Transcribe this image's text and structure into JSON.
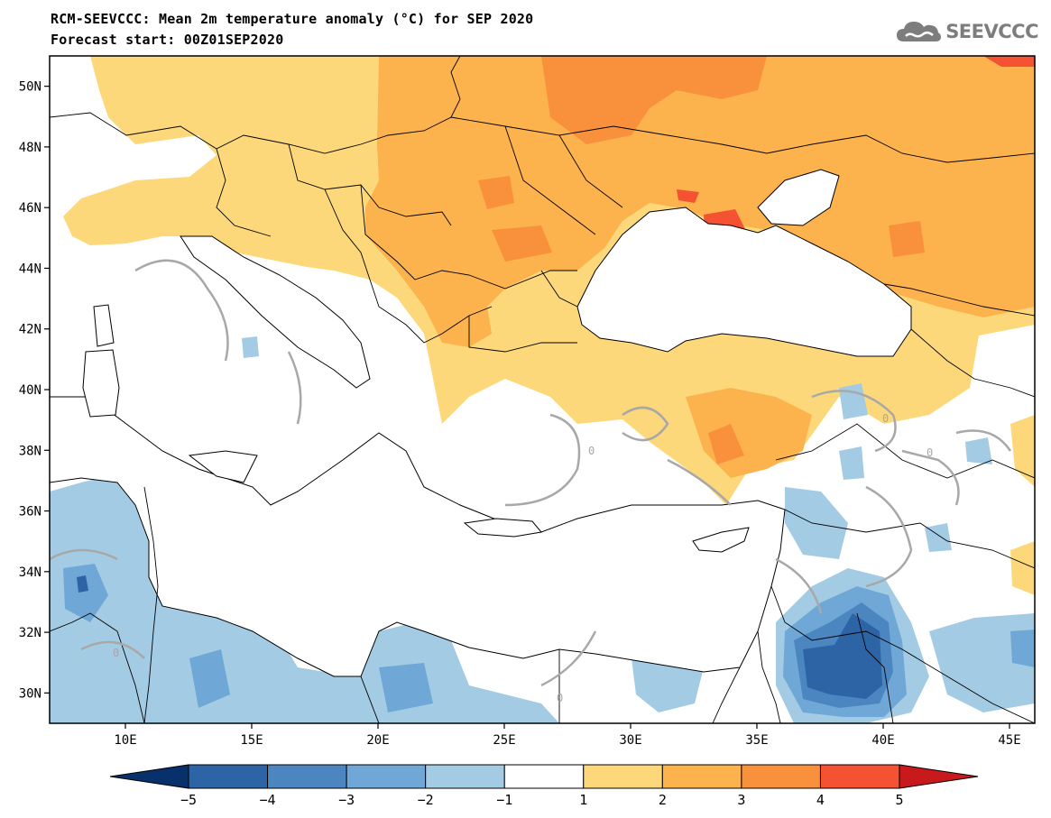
{
  "title": {
    "line1": "RCM-SEEVCCC: Mean 2m temperature anomaly (°C) for SEP 2020",
    "line2": "Forecast start: 00Z01SEP2020"
  },
  "logo": {
    "text": "SEEVCCC",
    "icon": "cloud-icon",
    "color": "#7d7d7d"
  },
  "map": {
    "variable": "2m temperature anomaly",
    "units": "°C",
    "lon_range": [
      7,
      46
    ],
    "lat_range": [
      29,
      51
    ],
    "lat_ticks": [
      {
        "value": 30,
        "label": "30N"
      },
      {
        "value": 32,
        "label": "32N"
      },
      {
        "value": 34,
        "label": "34N"
      },
      {
        "value": 36,
        "label": "36N"
      },
      {
        "value": 38,
        "label": "38N"
      },
      {
        "value": 40,
        "label": "40N"
      },
      {
        "value": 42,
        "label": "42N"
      },
      {
        "value": 44,
        "label": "44N"
      },
      {
        "value": 46,
        "label": "46N"
      },
      {
        "value": 48,
        "label": "48N"
      },
      {
        "value": 50,
        "label": "50N"
      }
    ],
    "lon_ticks": [
      {
        "value": 10,
        "label": "10E"
      },
      {
        "value": 15,
        "label": "15E"
      },
      {
        "value": 20,
        "label": "20E"
      },
      {
        "value": 25,
        "label": "25E"
      },
      {
        "value": 30,
        "label": "30E"
      },
      {
        "value": 35,
        "label": "35E"
      },
      {
        "value": 40,
        "label": "40E"
      },
      {
        "value": 45,
        "label": "45E"
      }
    ],
    "contour_zero_label": "0",
    "colors": {
      "warm1": "#fdd87b",
      "warm2": "#fcb24d",
      "warm3": "#f9913c",
      "warm4": "#f45232",
      "cool1": "#a3cbe3",
      "cool2": "#6fa8d6",
      "cool3": "#4b86c0",
      "cool4": "#2c64a6",
      "sea": "#ffffff",
      "border": "#000000",
      "contour": "#a8a8a8"
    }
  },
  "colorbar": {
    "labels": [
      "−5",
      "−4",
      "−3",
      "−2",
      "−1",
      "1",
      "2",
      "3",
      "4",
      "5"
    ],
    "segments": [
      {
        "from": "<-5",
        "color": "#08306b"
      },
      {
        "from": "-5",
        "to": "-4",
        "color": "#2c64a6"
      },
      {
        "from": "-4",
        "to": "-3",
        "color": "#4b86c0"
      },
      {
        "from": "-3",
        "to": "-2",
        "color": "#6fa8d6"
      },
      {
        "from": "-2",
        "to": "-1",
        "color": "#a3cbe3"
      },
      {
        "from": "-1",
        "to": "1",
        "color": "#ffffff"
      },
      {
        "from": "1",
        "to": "2",
        "color": "#fdd87b"
      },
      {
        "from": "2",
        "to": "3",
        "color": "#fcb24d"
      },
      {
        "from": "3",
        "to": "4",
        "color": "#f9913c"
      },
      {
        "from": "4",
        "to": "5",
        "color": "#f45232"
      },
      {
        "from": ">5",
        "color": "#c81a1c"
      }
    ]
  }
}
